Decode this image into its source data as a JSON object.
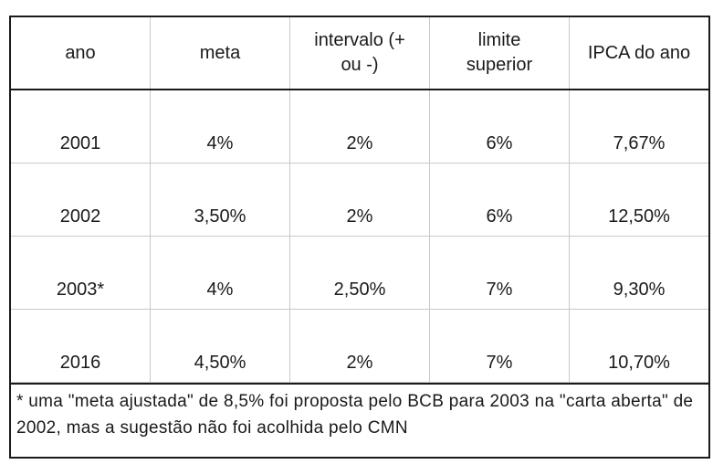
{
  "chart_data": {
    "type": "table",
    "title": "",
    "columns": [
      "ano",
      "meta",
      "intervalo (+ ou -)",
      "limite superior",
      "IPCA do ano"
    ],
    "rows": [
      [
        "2001",
        "4%",
        "2%",
        "6%",
        "7,67%"
      ],
      [
        "2002",
        "3,50%",
        "2%",
        "6%",
        "12,50%"
      ],
      [
        "2003*",
        "4%",
        "2,50%",
        "7%",
        "9,30%"
      ],
      [
        "2016",
        "4,50%",
        "2%",
        "7%",
        "10,70%"
      ]
    ],
    "footnote": "* uma \"meta ajustada\" de 8,5% foi proposta pelo BCB para 2003 na \"carta aberta\" de 2002, mas a sugestão não foi acolhida pelo CMN",
    "layout_hints": {
      "grid": "on",
      "columns_equal_width": true,
      "data_vertical_align": "bottom"
    }
  },
  "colors": {
    "outer_border": "#1a1a1a",
    "gridline": "#c9c9c9",
    "text": "#1a1a1a",
    "background": "#ffffff"
  }
}
